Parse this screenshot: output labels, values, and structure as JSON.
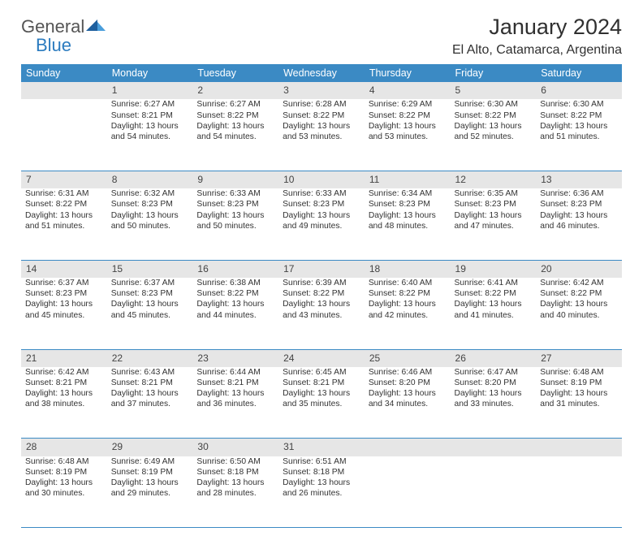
{
  "logo": {
    "text1": "General",
    "text2": "Blue"
  },
  "title": "January 2024",
  "subtitle": "El Alto, Catamarca, Argentina",
  "colors": {
    "header_bg": "#3b8ac4",
    "header_text": "#ffffff",
    "daynum_bg": "#e6e6e6",
    "body_text": "#333333",
    "rule": "#3b8ac4"
  },
  "fonts": {
    "title_size": 27,
    "subtitle_size": 16,
    "weekday_size": 12.5,
    "cell_size": 10.3
  },
  "weekdays": [
    "Sunday",
    "Monday",
    "Tuesday",
    "Wednesday",
    "Thursday",
    "Friday",
    "Saturday"
  ],
  "weeks": [
    {
      "nums": [
        "",
        "1",
        "2",
        "3",
        "4",
        "5",
        "6"
      ],
      "cells": [
        null,
        {
          "sunrise": "6:27 AM",
          "sunset": "8:21 PM",
          "daylight": "13 hours and 54 minutes."
        },
        {
          "sunrise": "6:27 AM",
          "sunset": "8:22 PM",
          "daylight": "13 hours and 54 minutes."
        },
        {
          "sunrise": "6:28 AM",
          "sunset": "8:22 PM",
          "daylight": "13 hours and 53 minutes."
        },
        {
          "sunrise": "6:29 AM",
          "sunset": "8:22 PM",
          "daylight": "13 hours and 53 minutes."
        },
        {
          "sunrise": "6:30 AM",
          "sunset": "8:22 PM",
          "daylight": "13 hours and 52 minutes."
        },
        {
          "sunrise": "6:30 AM",
          "sunset": "8:22 PM",
          "daylight": "13 hours and 51 minutes."
        }
      ]
    },
    {
      "nums": [
        "7",
        "8",
        "9",
        "10",
        "11",
        "12",
        "13"
      ],
      "cells": [
        {
          "sunrise": "6:31 AM",
          "sunset": "8:22 PM",
          "daylight": "13 hours and 51 minutes."
        },
        {
          "sunrise": "6:32 AM",
          "sunset": "8:23 PM",
          "daylight": "13 hours and 50 minutes."
        },
        {
          "sunrise": "6:33 AM",
          "sunset": "8:23 PM",
          "daylight": "13 hours and 50 minutes."
        },
        {
          "sunrise": "6:33 AM",
          "sunset": "8:23 PM",
          "daylight": "13 hours and 49 minutes."
        },
        {
          "sunrise": "6:34 AM",
          "sunset": "8:23 PM",
          "daylight": "13 hours and 48 minutes."
        },
        {
          "sunrise": "6:35 AM",
          "sunset": "8:23 PM",
          "daylight": "13 hours and 47 minutes."
        },
        {
          "sunrise": "6:36 AM",
          "sunset": "8:23 PM",
          "daylight": "13 hours and 46 minutes."
        }
      ]
    },
    {
      "nums": [
        "14",
        "15",
        "16",
        "17",
        "18",
        "19",
        "20"
      ],
      "cells": [
        {
          "sunrise": "6:37 AM",
          "sunset": "8:23 PM",
          "daylight": "13 hours and 45 minutes."
        },
        {
          "sunrise": "6:37 AM",
          "sunset": "8:23 PM",
          "daylight": "13 hours and 45 minutes."
        },
        {
          "sunrise": "6:38 AM",
          "sunset": "8:22 PM",
          "daylight": "13 hours and 44 minutes."
        },
        {
          "sunrise": "6:39 AM",
          "sunset": "8:22 PM",
          "daylight": "13 hours and 43 minutes."
        },
        {
          "sunrise": "6:40 AM",
          "sunset": "8:22 PM",
          "daylight": "13 hours and 42 minutes."
        },
        {
          "sunrise": "6:41 AM",
          "sunset": "8:22 PM",
          "daylight": "13 hours and 41 minutes."
        },
        {
          "sunrise": "6:42 AM",
          "sunset": "8:22 PM",
          "daylight": "13 hours and 40 minutes."
        }
      ]
    },
    {
      "nums": [
        "21",
        "22",
        "23",
        "24",
        "25",
        "26",
        "27"
      ],
      "cells": [
        {
          "sunrise": "6:42 AM",
          "sunset": "8:21 PM",
          "daylight": "13 hours and 38 minutes."
        },
        {
          "sunrise": "6:43 AM",
          "sunset": "8:21 PM",
          "daylight": "13 hours and 37 minutes."
        },
        {
          "sunrise": "6:44 AM",
          "sunset": "8:21 PM",
          "daylight": "13 hours and 36 minutes."
        },
        {
          "sunrise": "6:45 AM",
          "sunset": "8:21 PM",
          "daylight": "13 hours and 35 minutes."
        },
        {
          "sunrise": "6:46 AM",
          "sunset": "8:20 PM",
          "daylight": "13 hours and 34 minutes."
        },
        {
          "sunrise": "6:47 AM",
          "sunset": "8:20 PM",
          "daylight": "13 hours and 33 minutes."
        },
        {
          "sunrise": "6:48 AM",
          "sunset": "8:19 PM",
          "daylight": "13 hours and 31 minutes."
        }
      ]
    },
    {
      "nums": [
        "28",
        "29",
        "30",
        "31",
        "",
        "",
        ""
      ],
      "cells": [
        {
          "sunrise": "6:48 AM",
          "sunset": "8:19 PM",
          "daylight": "13 hours and 30 minutes."
        },
        {
          "sunrise": "6:49 AM",
          "sunset": "8:19 PM",
          "daylight": "13 hours and 29 minutes."
        },
        {
          "sunrise": "6:50 AM",
          "sunset": "8:18 PM",
          "daylight": "13 hours and 28 minutes."
        },
        {
          "sunrise": "6:51 AM",
          "sunset": "8:18 PM",
          "daylight": "13 hours and 26 minutes."
        },
        null,
        null,
        null
      ]
    }
  ],
  "labels": {
    "sunrise": "Sunrise:",
    "sunset": "Sunset:",
    "daylight": "Daylight:"
  }
}
